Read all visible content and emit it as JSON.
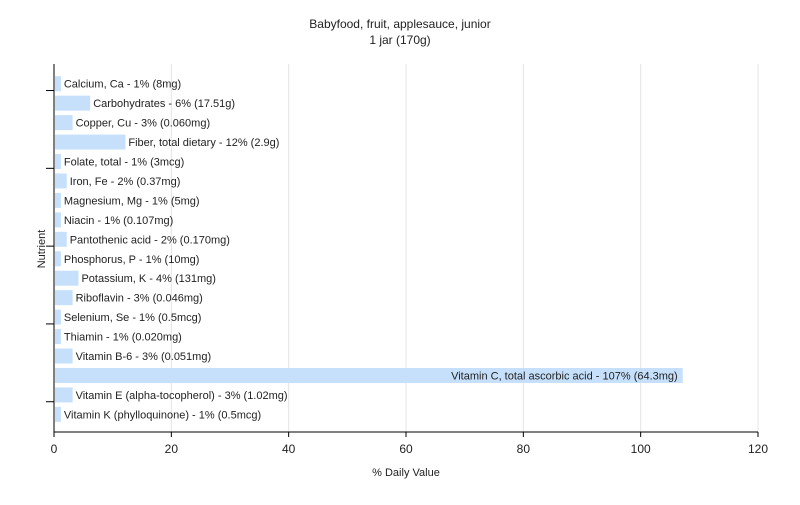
{
  "chart_data": {
    "type": "bar",
    "orientation": "horizontal",
    "title": "Babyfood, fruit, applesauce, junior",
    "subtitle": "1 jar (170g)",
    "xlabel": "% Daily Value",
    "ylabel": "Nutrient",
    "xlim": [
      0,
      120
    ],
    "xticks": [
      0,
      20,
      40,
      60,
      80,
      100,
      120
    ],
    "grid": true,
    "bar_color": "#c6e0fb",
    "categories": [
      "Calcium, Ca",
      "Carbohydrates",
      "Copper, Cu",
      "Fiber, total dietary",
      "Folate, total",
      "Iron, Fe",
      "Magnesium, Mg",
      "Niacin",
      "Pantothenic acid",
      "Phosphorus, P",
      "Potassium, K",
      "Riboflavin",
      "Selenium, Se",
      "Thiamin",
      "Vitamin B-6",
      "Vitamin C, total ascorbic acid",
      "Vitamin E (alpha-tocopherol)",
      "Vitamin K (phylloquinone)"
    ],
    "values": [
      1,
      6,
      3,
      12,
      1,
      2,
      1,
      1,
      2,
      1,
      4,
      3,
      1,
      1,
      3,
      107,
      3,
      1
    ],
    "labels": [
      "Calcium, Ca - 1% (8mg)",
      "Carbohydrates - 6% (17.51g)",
      "Copper, Cu - 3% (0.060mg)",
      "Fiber, total dietary - 12% (2.9g)",
      "Folate, total - 1% (3mcg)",
      "Iron, Fe - 2% (0.37mg)",
      "Magnesium, Mg - 1% (5mg)",
      "Niacin - 1% (0.107mg)",
      "Pantothenic acid - 2% (0.170mg)",
      "Phosphorus, P - 1% (10mg)",
      "Potassium, K - 4% (131mg)",
      "Riboflavin - 3% (0.046mg)",
      "Selenium, Se - 1% (0.5mcg)",
      "Thiamin - 1% (0.020mg)",
      "Vitamin B-6 - 3% (0.051mg)",
      "Vitamin C, total ascorbic acid - 107% (64.3mg)",
      "Vitamin E (alpha-tocopherol) - 3% (1.02mg)",
      "Vitamin K (phylloquinone) - 1% (0.5mcg)"
    ]
  }
}
